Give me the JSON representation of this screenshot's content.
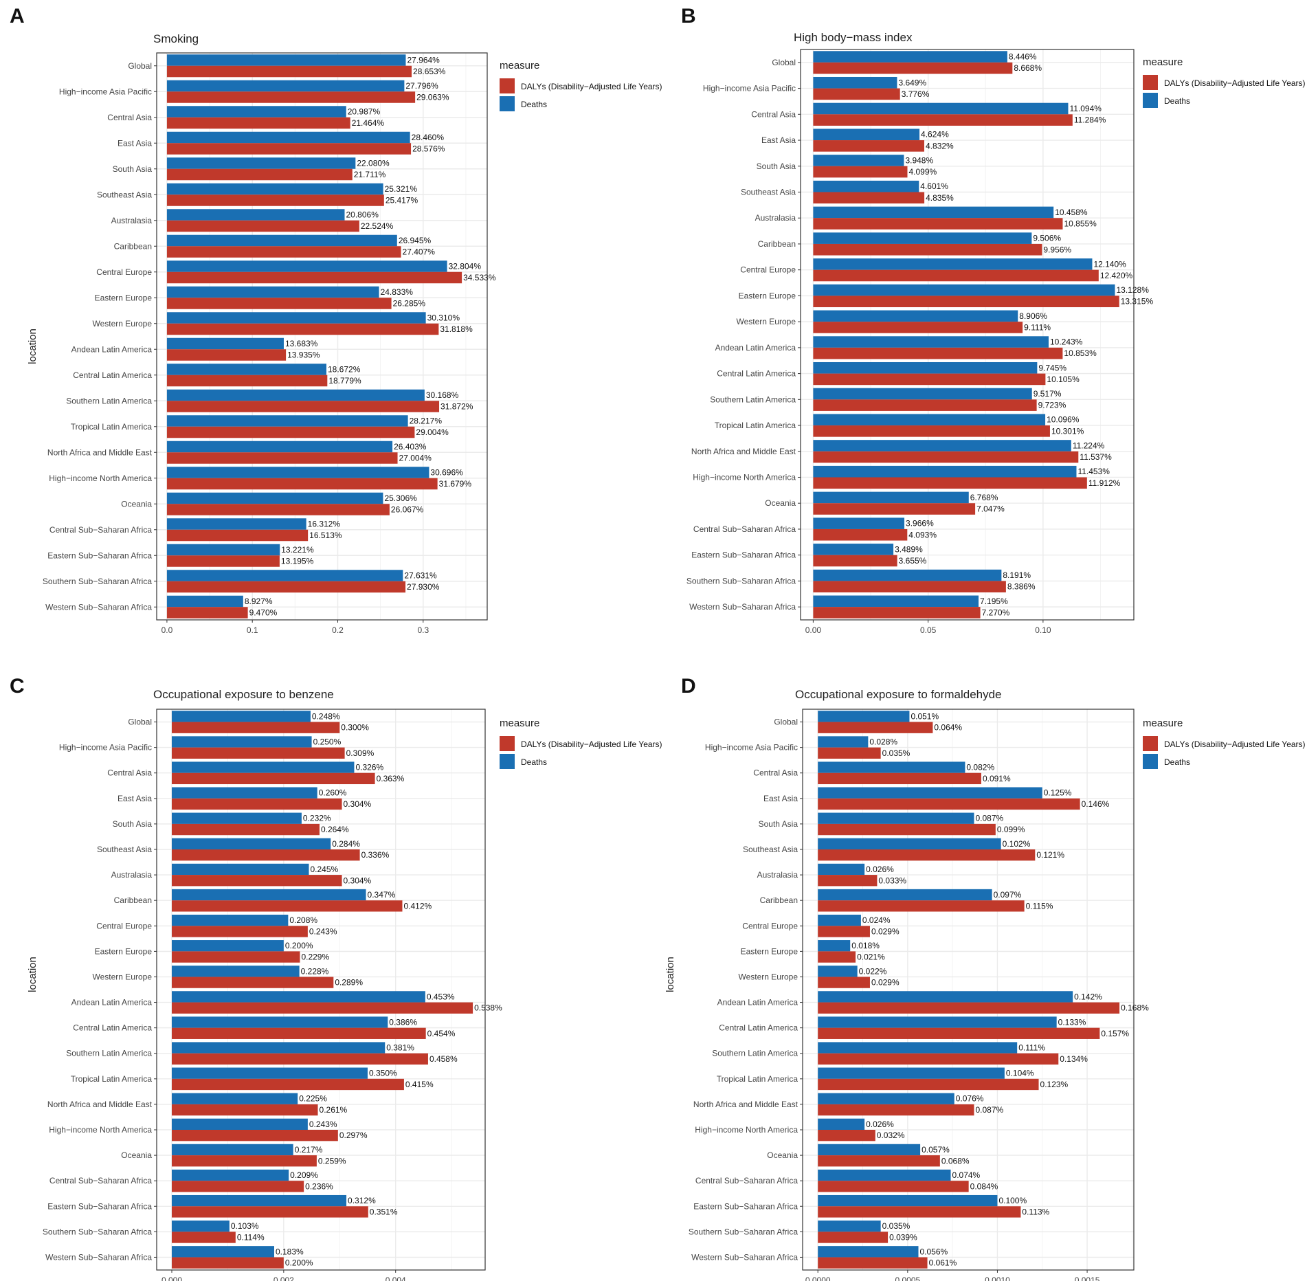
{
  "figure": {
    "panel_labels": [
      "A",
      "B",
      "C",
      "D"
    ]
  },
  "colors": {
    "dalys": "#C0392B",
    "deaths": "#1A6FB3",
    "panel_border": "#333333",
    "grid": "#EBEBEB",
    "text": "#222222",
    "tick_text": "#444444"
  },
  "chart_data": [
    {
      "type": "bar",
      "orientation": "horizontal",
      "panel": "A",
      "title": "Smoking",
      "xlabel": "",
      "ylabel": "location",
      "show_ylabel": true,
      "legend": {
        "title": "measure",
        "placement": "right-top",
        "entries": [
          "DALYs (Disability−Adjusted Life Years)",
          "Deaths"
        ]
      },
      "xlim": [
        -0.012,
        0.375
      ],
      "xticks": [
        0,
        0.1,
        0.2,
        0.3
      ],
      "xtick_labels": [
        "0.0",
        "0.1",
        "0.2",
        "0.3"
      ],
      "categories": [
        "Global",
        "High−income Asia Pacific",
        "Central Asia",
        "East Asia",
        "South Asia",
        "Southeast Asia",
        "Australasia",
        "Caribbean",
        "Central Europe",
        "Eastern Europe",
        "Western Europe",
        "Andean Latin America",
        "Central Latin America",
        "Southern Latin America",
        "Tropical Latin America",
        "North Africa and Middle East",
        "High−income North America",
        "Oceania",
        "Central Sub−Saharan Africa",
        "Eastern Sub−Saharan Africa",
        "Southern Sub−Saharan Africa",
        "Western Sub−Saharan Africa"
      ],
      "series": [
        {
          "name": "Deaths",
          "values": [
            0.27964,
            0.27796,
            0.20987,
            0.2846,
            0.2208,
            0.25321,
            0.20806,
            0.26945,
            0.32804,
            0.24833,
            0.3031,
            0.13683,
            0.18672,
            0.30168,
            0.28217,
            0.26403,
            0.30696,
            0.25306,
            0.16312,
            0.13221,
            0.27631,
            0.08927
          ],
          "labels": [
            "27.964%",
            "27.796%",
            "20.987%",
            "28.460%",
            "22.080%",
            "25.321%",
            "20.806%",
            "26.945%",
            "32.804%",
            "24.833%",
            "30.310%",
            "13.683%",
            "18.672%",
            "30.168%",
            "28.217%",
            "26.403%",
            "30.696%",
            "25.306%",
            "16.312%",
            "13.221%",
            "27.631%",
            "8.927%"
          ]
        },
        {
          "name": "DALYs (Disability−Adjusted Life Years)",
          "values": [
            0.28653,
            0.29063,
            0.21464,
            0.28576,
            0.21711,
            0.25417,
            0.22524,
            0.27407,
            0.34533,
            0.26285,
            0.31818,
            0.13935,
            0.18779,
            0.31872,
            0.29004,
            0.27004,
            0.31679,
            0.26067,
            0.16513,
            0.13195,
            0.2793,
            0.0947
          ],
          "labels": [
            "28.653%",
            "29.063%",
            "21.464%",
            "28.576%",
            "21.711%",
            "25.417%",
            "22.524%",
            "27.407%",
            "34.533%",
            "26.285%",
            "31.818%",
            "13.935%",
            "18.779%",
            "31.872%",
            "29.004%",
            "27.004%",
            "31.679%",
            "26.067%",
            "16.513%",
            "13.195%",
            "27.930%",
            "9.470%"
          ]
        }
      ]
    },
    {
      "type": "bar",
      "orientation": "horizontal",
      "panel": "B",
      "title": "High body−mass index",
      "xlabel": "",
      "ylabel": "",
      "show_ylabel": false,
      "legend": {
        "title": "measure",
        "placement": "right-top",
        "entries": [
          "DALYs (Disability−Adjusted Life Years)",
          "Deaths"
        ]
      },
      "xlim": [
        -0.0055,
        0.1395
      ],
      "xticks": [
        0,
        0.05,
        0.1
      ],
      "xtick_labels": [
        "0.00",
        "0.05",
        "0.10"
      ],
      "categories": [
        "Global",
        "High−income Asia Pacific",
        "Central Asia",
        "East Asia",
        "South Asia",
        "Southeast Asia",
        "Australasia",
        "Caribbean",
        "Central Europe",
        "Eastern Europe",
        "Western Europe",
        "Andean Latin America",
        "Central Latin America",
        "Southern Latin America",
        "Tropical Latin America",
        "North Africa and Middle East",
        "High−income North America",
        "Oceania",
        "Central Sub−Saharan Africa",
        "Eastern Sub−Saharan Africa",
        "Southern Sub−Saharan Africa",
        "Western Sub−Saharan Africa"
      ],
      "series": [
        {
          "name": "Deaths",
          "values": [
            0.08446,
            0.03649,
            0.11094,
            0.04624,
            0.03948,
            0.04601,
            0.10458,
            0.09506,
            0.1214,
            0.13128,
            0.08906,
            0.10243,
            0.09745,
            0.09517,
            0.10096,
            0.11224,
            0.11453,
            0.06768,
            0.03966,
            0.03489,
            0.08191,
            0.07195
          ],
          "labels": [
            "8.446%",
            "3.649%",
            "11.094%",
            "4.624%",
            "3.948%",
            "4.601%",
            "10.458%",
            "9.506%",
            "12.140%",
            "13.128%",
            "8.906%",
            "10.243%",
            "9.745%",
            "9.517%",
            "10.096%",
            "11.224%",
            "11.453%",
            "6.768%",
            "3.966%",
            "3.489%",
            "8.191%",
            "7.195%"
          ]
        },
        {
          "name": "DALYs (Disability−Adjusted Life Years)",
          "values": [
            0.08668,
            0.03776,
            0.11284,
            0.04832,
            0.04099,
            0.04835,
            0.10855,
            0.09956,
            0.1242,
            0.13315,
            0.09111,
            0.10853,
            0.10105,
            0.09723,
            0.10301,
            0.11537,
            0.11912,
            0.07047,
            0.04093,
            0.03655,
            0.08386,
            0.0727
          ],
          "labels": [
            "8.668%",
            "3.776%",
            "11.284%",
            "4.832%",
            "4.099%",
            "4.835%",
            "10.855%",
            "9.956%",
            "12.420%",
            "13.315%",
            "9.111%",
            "10.853%",
            "10.105%",
            "9.723%",
            "10.301%",
            "11.537%",
            "11.912%",
            "7.047%",
            "4.093%",
            "3.655%",
            "8.386%",
            "7.270%"
          ]
        }
      ]
    },
    {
      "type": "bar",
      "orientation": "horizontal",
      "panel": "C",
      "title": "Occupational exposure to benzene",
      "xlabel": "",
      "ylabel": "location",
      "show_ylabel": true,
      "legend": {
        "title": "measure",
        "placement": "right-top",
        "entries": [
          "DALYs (Disability−Adjusted Life Years)",
          "Deaths"
        ]
      },
      "xlim": [
        -0.00027,
        0.0056
      ],
      "xticks": [
        0,
        0.002,
        0.004
      ],
      "xtick_labels": [
        "0.000",
        "0.002",
        "0.004"
      ],
      "categories": [
        "Global",
        "High−income Asia Pacific",
        "Central Asia",
        "East Asia",
        "South Asia",
        "Southeast Asia",
        "Australasia",
        "Caribbean",
        "Central Europe",
        "Eastern Europe",
        "Western Europe",
        "Andean Latin America",
        "Central Latin America",
        "Southern Latin America",
        "Tropical Latin America",
        "North Africa and Middle East",
        "High−income North America",
        "Oceania",
        "Central Sub−Saharan Africa",
        "Eastern Sub−Saharan Africa",
        "Southern Sub−Saharan Africa",
        "Western Sub−Saharan Africa"
      ],
      "series": [
        {
          "name": "Deaths",
          "values": [
            0.00248,
            0.0025,
            0.00326,
            0.0026,
            0.00232,
            0.00284,
            0.00245,
            0.00347,
            0.00208,
            0.002,
            0.00228,
            0.00453,
            0.00386,
            0.00381,
            0.0035,
            0.00225,
            0.00243,
            0.00217,
            0.00209,
            0.00312,
            0.00103,
            0.00183
          ],
          "labels": [
            "0.248%",
            "0.250%",
            "0.326%",
            "0.260%",
            "0.232%",
            "0.284%",
            "0.245%",
            "0.347%",
            "0.208%",
            "0.200%",
            "0.228%",
            "0.453%",
            "0.386%",
            "0.381%",
            "0.350%",
            "0.225%",
            "0.243%",
            "0.217%",
            "0.209%",
            "0.312%",
            "0.103%",
            "0.183%"
          ]
        },
        {
          "name": "DALYs (Disability−Adjusted Life Years)",
          "values": [
            0.003,
            0.00309,
            0.00363,
            0.00304,
            0.00264,
            0.00336,
            0.00304,
            0.00412,
            0.00243,
            0.00229,
            0.00289,
            0.00538,
            0.00454,
            0.00458,
            0.00415,
            0.00261,
            0.00297,
            0.00259,
            0.00236,
            0.00351,
            0.00114,
            0.002
          ],
          "labels": [
            "0.300%",
            "0.309%",
            "0.363%",
            "0.304%",
            "0.264%",
            "0.336%",
            "0.304%",
            "0.412%",
            "0.243%",
            "0.229%",
            "0.289%",
            "0.538%",
            "0.454%",
            "0.458%",
            "0.415%",
            "0.261%",
            "0.297%",
            "0.259%",
            "0.236%",
            "0.351%",
            "0.114%",
            "0.200%"
          ]
        }
      ]
    },
    {
      "type": "bar",
      "orientation": "horizontal",
      "panel": "D",
      "title": "Occupational exposure to formaldehyde",
      "xlabel": "",
      "ylabel": "location",
      "show_ylabel": true,
      "legend": {
        "title": "measure",
        "placement": "right-top",
        "entries": [
          "DALYs (Disability−Adjusted Life Years)",
          "Deaths"
        ]
      },
      "xlim": [
        -8.5e-05,
        0.00176
      ],
      "xticks": [
        0,
        0.0005,
        0.001,
        0.0015
      ],
      "xtick_labels": [
        "0.0000",
        "0.0005",
        "0.0010",
        "0.0015"
      ],
      "categories": [
        "Global",
        "High−income Asia Pacific",
        "Central Asia",
        "East Asia",
        "South Asia",
        "Southeast Asia",
        "Australasia",
        "Caribbean",
        "Central Europe",
        "Eastern Europe",
        "Western Europe",
        "Andean Latin America",
        "Central Latin America",
        "Southern Latin America",
        "Tropical Latin America",
        "North Africa and Middle East",
        "High−income North America",
        "Oceania",
        "Central Sub−Saharan Africa",
        "Eastern Sub−Saharan Africa",
        "Southern Sub−Saharan Africa",
        "Western Sub−Saharan Africa"
      ],
      "series": [
        {
          "name": "Deaths",
          "values": [
            0.00051,
            0.00028,
            0.00082,
            0.00125,
            0.00087,
            0.00102,
            0.00026,
            0.00097,
            0.00024,
            0.00018,
            0.00022,
            0.00142,
            0.00133,
            0.00111,
            0.00104,
            0.00076,
            0.00026,
            0.00057,
            0.00074,
            0.001,
            0.00035,
            0.00056
          ],
          "labels": [
            "0.051%",
            "0.028%",
            "0.082%",
            "0.125%",
            "0.087%",
            "0.102%",
            "0.026%",
            "0.097%",
            "0.024%",
            "0.018%",
            "0.022%",
            "0.142%",
            "0.133%",
            "0.111%",
            "0.104%",
            "0.076%",
            "0.026%",
            "0.057%",
            "0.074%",
            "0.100%",
            "0.035%",
            "0.056%"
          ]
        },
        {
          "name": "DALYs (Disability−Adjusted Life Years)",
          "values": [
            0.00064,
            0.00035,
            0.00091,
            0.00146,
            0.00099,
            0.00121,
            0.00033,
            0.00115,
            0.00029,
            0.00021,
            0.00029,
            0.00168,
            0.00157,
            0.00134,
            0.00123,
            0.00087,
            0.00032,
            0.00068,
            0.00084,
            0.00113,
            0.00039,
            0.00061
          ],
          "labels": [
            "0.064%",
            "0.035%",
            "0.091%",
            "0.146%",
            "0.099%",
            "0.121%",
            "0.033%",
            "0.115%",
            "0.029%",
            "0.021%",
            "0.029%",
            "0.168%",
            "0.157%",
            "0.134%",
            "0.123%",
            "0.087%",
            "0.032%",
            "0.068%",
            "0.084%",
            "0.113%",
            "0.039%",
            "0.061%"
          ]
        }
      ]
    }
  ]
}
